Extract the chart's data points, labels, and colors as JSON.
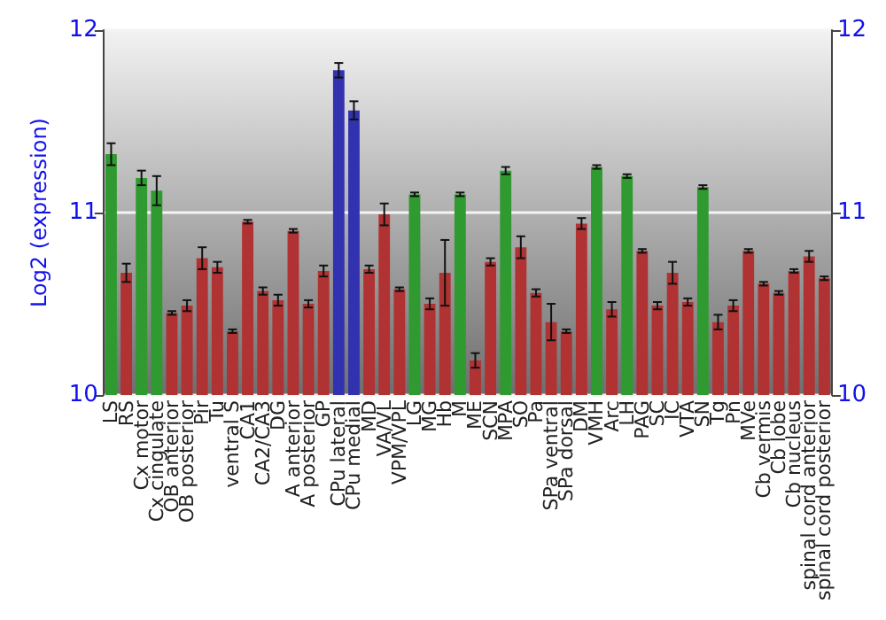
{
  "chart_data": {
    "type": "bar",
    "ylabel": "Log2 (expression)",
    "categories": [
      "LS",
      "RS",
      "Cx motor",
      "Cx cingulate",
      "OB anterior",
      "OB posterior",
      "Pir",
      "Tu",
      "ventral S",
      "CA1",
      "CA2/CA3",
      "DG",
      "A anterior",
      "A posterior",
      "GP",
      "CPu lateral",
      "CPu medial",
      "MD",
      "VA/VL",
      "VPM/VPL",
      "LG",
      "MG",
      "Hb",
      "M",
      "ME",
      "SCN",
      "MPA",
      "SO",
      "Pa",
      "SPa ventral",
      "SPa dorsal",
      "DM",
      "VMH",
      "Arc",
      "LH",
      "PAG",
      "SC",
      "IC",
      "VTA",
      "SN",
      "Tg",
      "Pn",
      "MVe",
      "Cb vermis",
      "Cb lobe",
      "Cb nucleus",
      "spinal cord anterior",
      "spinal cord posterior"
    ],
    "values": [
      11.32,
      10.67,
      11.19,
      11.12,
      10.45,
      10.49,
      10.75,
      10.7,
      10.35,
      10.95,
      10.57,
      10.52,
      10.9,
      10.5,
      10.68,
      11.78,
      11.56,
      10.69,
      10.99,
      10.58,
      11.1,
      10.5,
      10.67,
      11.1,
      10.19,
      10.73,
      11.23,
      10.81,
      10.56,
      10.4,
      10.35,
      10.94,
      11.25,
      10.47,
      11.2,
      10.79,
      10.49,
      10.67,
      10.51,
      11.14,
      10.4,
      10.49,
      10.79,
      10.61,
      10.56,
      10.68,
      10.76,
      10.64
    ],
    "errors": [
      0.06,
      0.05,
      0.04,
      0.08,
      0.01,
      0.03,
      0.06,
      0.03,
      0.01,
      0.01,
      0.02,
      0.03,
      0.01,
      0.02,
      0.03,
      0.04,
      0.05,
      0.02,
      0.06,
      0.01,
      0.01,
      0.03,
      0.18,
      0.01,
      0.04,
      0.02,
      0.02,
      0.06,
      0.02,
      0.1,
      0.01,
      0.03,
      0.01,
      0.04,
      0.01,
      0.01,
      0.02,
      0.06,
      0.02,
      0.01,
      0.04,
      0.03,
      0.01,
      0.01,
      0.01,
      0.01,
      0.03,
      0.01
    ],
    "colors": [
      "#2f9a2f",
      "#b03232",
      "#2f9a2f",
      "#2f9a2f",
      "#b03232",
      "#b03232",
      "#b03232",
      "#b03232",
      "#b03232",
      "#b03232",
      "#b03232",
      "#b03232",
      "#b03232",
      "#b03232",
      "#b03232",
      "#3232b0",
      "#3232b0",
      "#b03232",
      "#b03232",
      "#b03232",
      "#2f9a2f",
      "#b03232",
      "#b03232",
      "#2f9a2f",
      "#b03232",
      "#b03232",
      "#2f9a2f",
      "#b03232",
      "#b03232",
      "#b03232",
      "#b03232",
      "#b03232",
      "#2f9a2f",
      "#b03232",
      "#2f9a2f",
      "#b03232",
      "#b03232",
      "#b03232",
      "#b03232",
      "#2f9a2f",
      "#b03232",
      "#b03232",
      "#b03232",
      "#b03232",
      "#b03232",
      "#b03232",
      "#b03232",
      "#b03232"
    ],
    "ylim": [
      10,
      12
    ],
    "yticks": [
      10,
      11,
      12
    ],
    "y2lim": [
      10,
      12
    ],
    "y2ticks": [
      10,
      11,
      12
    ],
    "grid": "y"
  }
}
